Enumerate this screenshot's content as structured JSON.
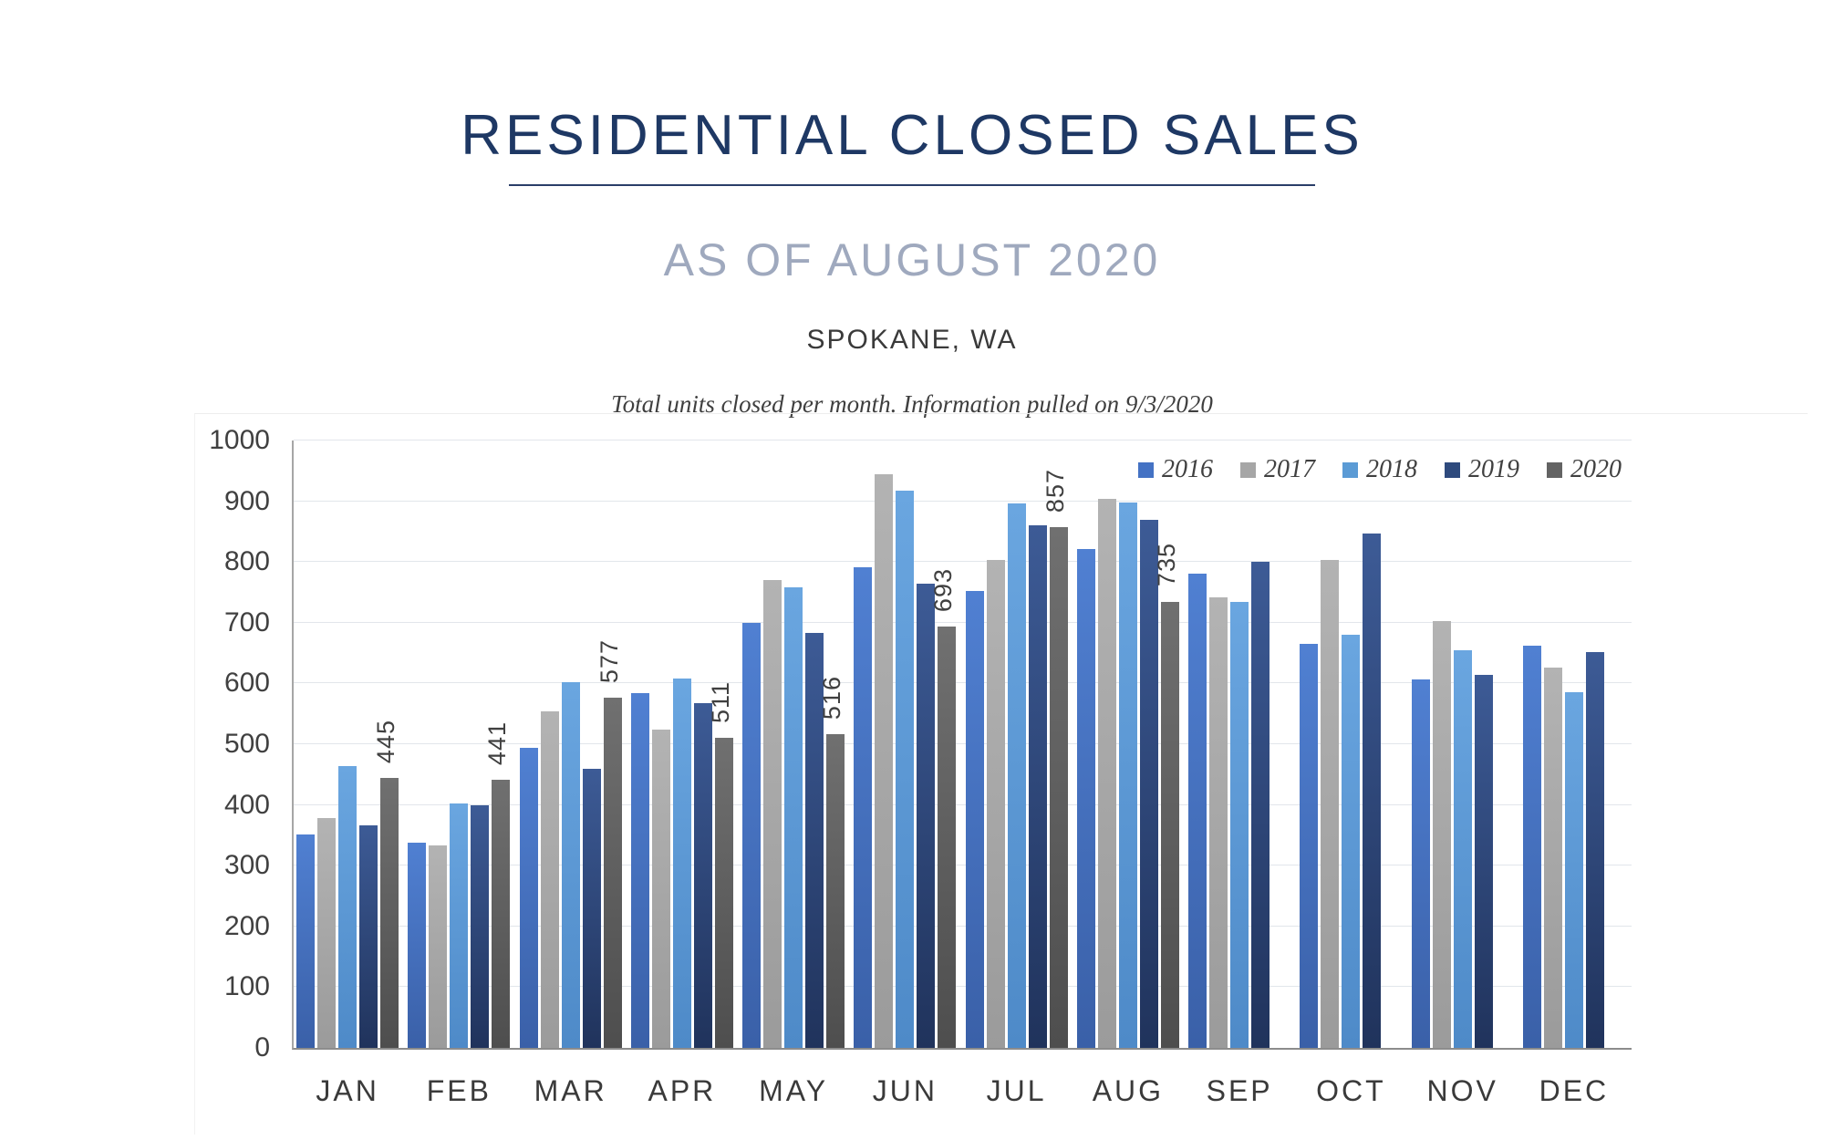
{
  "header": {
    "title": "RESIDENTIAL CLOSED SALES",
    "subtitle": "AS OF AUGUST 2020",
    "location": "SPOKANE, WA",
    "note": "Total units closed per month.  Information pulled on 9/3/2020"
  },
  "colors": {
    "title_text": "#1E3864",
    "subtitle_text": "#9FA9BE",
    "axis_text": "#404040",
    "gridline": "#E2E6EB",
    "axis_line": "#8C8C8C"
  },
  "chart_data": {
    "type": "bar",
    "title": "Residential Closed Sales by month, Spokane WA, as of August 2020",
    "categories": [
      "JAN",
      "FEB",
      "MAR",
      "APR",
      "MAY",
      "JUN",
      "JUL",
      "AUG",
      "SEP",
      "OCT",
      "NOV",
      "DEC"
    ],
    "series": [
      {
        "name": "2016",
        "color": "#4472C4",
        "fill_top": "#5080D2",
        "fill_bottom": "#3A60A8",
        "values": [
          351,
          338,
          494,
          584,
          700,
          792,
          752,
          822,
          781,
          665,
          606,
          662
        ]
      },
      {
        "name": "2017",
        "color": "#A6A6A6",
        "fill_top": "#B3B3B3",
        "fill_bottom": "#9B9B9B",
        "values": [
          378,
          333,
          554,
          524,
          770,
          944,
          803,
          904,
          742,
          803,
          703,
          626
        ]
      },
      {
        "name": "2018",
        "color": "#5B9BD5",
        "fill_top": "#6AA6E0",
        "fill_bottom": "#4E8AC8",
        "values": [
          464,
          402,
          602,
          608,
          758,
          918,
          897,
          898,
          734,
          680,
          654,
          586
        ]
      },
      {
        "name": "2019",
        "color": "#2E4A7D",
        "fill_top": "#3D5B96",
        "fill_bottom": "#20335C",
        "values": [
          366,
          399,
          459,
          568,
          683,
          764,
          861,
          869,
          800,
          847,
          614,
          652
        ]
      },
      {
        "name": "2020",
        "color": "#636363",
        "fill_top": "#707070",
        "fill_bottom": "#4E4E4E",
        "show_labels": true,
        "values": [
          445,
          441,
          577,
          511,
          516,
          693,
          857,
          735,
          null,
          null,
          null,
          null
        ]
      }
    ],
    "ylim": [
      0,
      1000
    ],
    "ytick_interval": 100,
    "grid": "horizontal",
    "legend_position": "top-right",
    "data_labels": {
      "series": "2020",
      "rotation_degrees": -90
    }
  }
}
